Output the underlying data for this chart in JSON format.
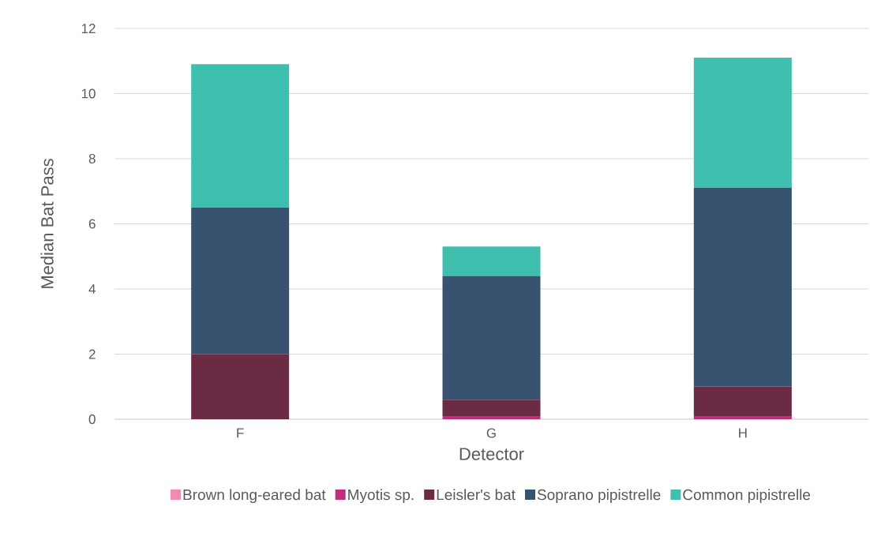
{
  "chart_data": {
    "type": "bar",
    "stacked": true,
    "xlabel": "Detector",
    "ylabel": "Median Bat Pass",
    "categories": [
      "F",
      "G",
      "H"
    ],
    "series": [
      {
        "name": "Brown long-eared bat",
        "color": "#f08cb4",
        "values": [
          0,
          0,
          0
        ]
      },
      {
        "name": "Myotis sp.",
        "color": "#c0307a",
        "values": [
          0,
          0.1,
          0.1
        ]
      },
      {
        "name": "Leisler's bat",
        "color": "#6b2b45",
        "values": [
          2,
          0.5,
          0.9
        ]
      },
      {
        "name": "Soprano pipistrelle",
        "color": "#38536f",
        "values": [
          4.5,
          3.8,
          6.1
        ]
      },
      {
        "name": "Common pipistrelle",
        "color": "#3fbfae",
        "values": [
          4.4,
          0.9,
          4.0
        ]
      }
    ],
    "ylim": [
      0,
      12
    ],
    "yticks": [
      0,
      2,
      4,
      6,
      8,
      10,
      12
    ],
    "grid": "y",
    "legend": "bottom"
  }
}
